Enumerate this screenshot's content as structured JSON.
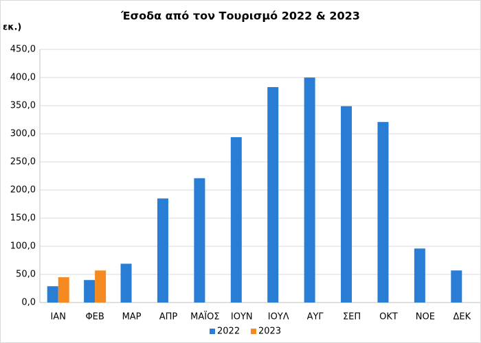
{
  "chart_data": {
    "type": "bar",
    "title": "Έσοδα από τον Τουρισμό 2022 & 2023",
    "y_label": "εκ.)",
    "categories": [
      "ΙΑΝ",
      "ΦΕΒ",
      "ΜΑΡ",
      "ΑΠΡ",
      "ΜΑΪΟΣ",
      "ΙΟΥΝ",
      "ΙΟΥΛ",
      "ΑΥΓ",
      "ΣΕΠ",
      "ΟΚΤ",
      "ΝΟΕ",
      "ΔΕΚ"
    ],
    "series": [
      {
        "name": "2022",
        "color": "#2a7dd4",
        "values": [
          29,
          40,
          69,
          185,
          221,
          294,
          383,
          400,
          349,
          321,
          96,
          57
        ]
      },
      {
        "name": "2023",
        "color": "#f58a22",
        "values": [
          45,
          57,
          null,
          null,
          null,
          null,
          null,
          null,
          null,
          null,
          null,
          null
        ]
      }
    ],
    "ylim": [
      0,
      450
    ],
    "yticks": [
      {
        "value": 0,
        "label": "0,0"
      },
      {
        "value": 50,
        "label": "50,0"
      },
      {
        "value": 100,
        "label": "100,0"
      },
      {
        "value": 150,
        "label": "150,0"
      },
      {
        "value": 200,
        "label": "200,0"
      },
      {
        "value": 250,
        "label": "250,0"
      },
      {
        "value": 300,
        "label": "300,0"
      },
      {
        "value": 350,
        "label": "350,0"
      },
      {
        "value": 400,
        "label": "400,0"
      },
      {
        "value": 450,
        "label": "450,0"
      }
    ],
    "grid": true,
    "legend": "bottom"
  }
}
